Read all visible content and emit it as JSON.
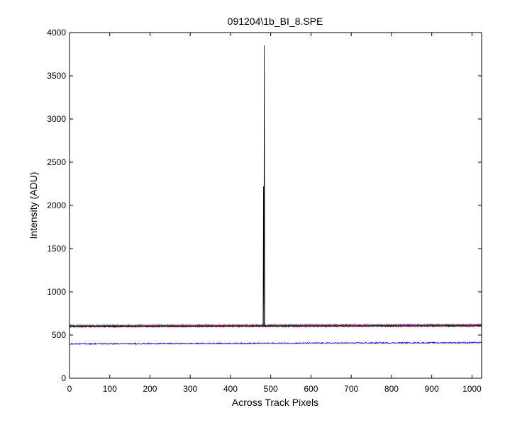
{
  "chart_data": {
    "type": "line",
    "title": "091204\\1b_BI_8.SPE",
    "xlabel": "Across Track Pixels",
    "ylabel": "Intensity (ADU)",
    "xlim": [
      0,
      1024
    ],
    "ylim": [
      0,
      4000
    ],
    "x_ticks": [
      0,
      100,
      200,
      300,
      400,
      500,
      600,
      700,
      800,
      900,
      1000
    ],
    "y_ticks": [
      0,
      500,
      1000,
      1500,
      2000,
      2500,
      3000,
      3500,
      4000
    ],
    "grid": false,
    "legend": "none",
    "series": [
      {
        "color": "#008000",
        "x_range": [
          0,
          1024
        ],
        "baseline": 608,
        "trend_end": 618,
        "noise": 10
      },
      {
        "color": "#008080",
        "x_range": [
          0,
          1024
        ],
        "baseline": 606,
        "trend_end": 616,
        "noise": 10
      },
      {
        "color": "#ff0000",
        "x_range": [
          0,
          1024
        ],
        "baseline": 600,
        "trend_end": 610,
        "noise": 9
      },
      {
        "color": "#bf00bf",
        "x_range": [
          0,
          1024
        ],
        "baseline": 602,
        "trend_end": 612,
        "noise": 9
      },
      {
        "color": "#000000",
        "x_range": [
          0,
          1024
        ],
        "baseline": 598,
        "trend_end": 606,
        "noise": 8,
        "spikes": [
          {
            "x": 482,
            "y": 2220
          },
          {
            "x": 483,
            "y": 605
          },
          {
            "x": 484,
            "y": 3850
          }
        ]
      },
      {
        "color": "#0000ff",
        "x_range": [
          0,
          1024
        ],
        "baseline": 398,
        "trend_end": 412,
        "noise": 7
      }
    ]
  }
}
